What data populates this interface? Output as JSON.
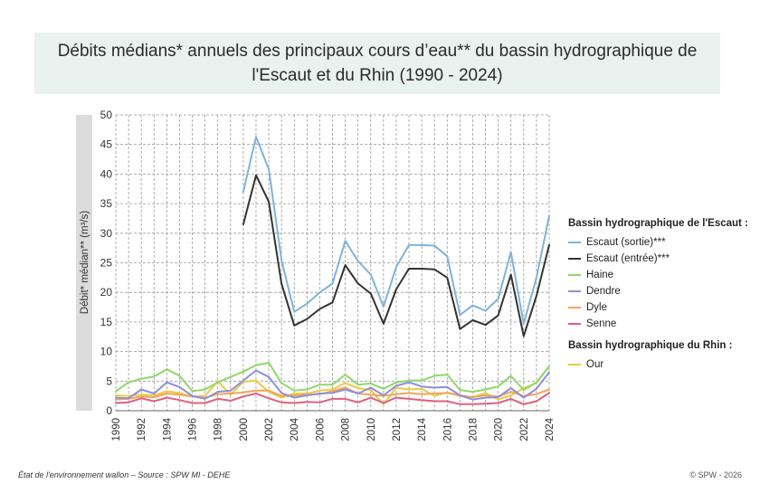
{
  "chart_data": {
    "type": "line",
    "title": "Débits médians* annuels des principaux cours d’eau** du bassin hydrographique de l'Escaut et du Rhin (1990 - 2024)",
    "ylabel": "Débit* médian** (m³/s)",
    "xlabel": "",
    "ylim": [
      0,
      50
    ],
    "yticks": [
      0,
      5,
      10,
      15,
      20,
      25,
      30,
      35,
      40,
      45,
      50
    ],
    "xlim": [
      1990,
      2024
    ],
    "xticks": [
      1990,
      1992,
      1994,
      1996,
      1998,
      2000,
      2002,
      2004,
      2006,
      2008,
      2010,
      2012,
      2014,
      2016,
      2018,
      2020,
      2022,
      2024
    ],
    "grid": true,
    "legend_position": "right",
    "x": [
      1990,
      1991,
      1992,
      1993,
      1994,
      1995,
      1996,
      1997,
      1998,
      1999,
      2000,
      2001,
      2002,
      2003,
      2004,
      2005,
      2006,
      2007,
      2008,
      2009,
      2010,
      2011,
      2012,
      2013,
      2014,
      2015,
      2016,
      2017,
      2018,
      2019,
      2020,
      2021,
      2022,
      2023,
      2024
    ],
    "series": [
      {
        "name": "Escaut (sortie)***",
        "color": "#7fb3dc",
        "values": [
          null,
          null,
          null,
          null,
          null,
          null,
          null,
          null,
          null,
          null,
          37,
          46.3,
          40.8,
          25.5,
          16.7,
          18.1,
          20,
          21.5,
          28.7,
          25.3,
          23,
          17.6,
          24.3,
          28,
          28,
          27.9,
          26.1,
          16.2,
          17.8,
          16.9,
          18.9,
          26.8,
          14.7,
          22.5,
          32.9
        ]
      },
      {
        "name": "Escaut (entrée)***",
        "color": "#333333",
        "values": [
          null,
          null,
          null,
          null,
          null,
          null,
          null,
          null,
          null,
          null,
          31.5,
          39.8,
          35.3,
          21.5,
          14.4,
          15.5,
          17.2,
          18.3,
          24.6,
          21.5,
          19.8,
          14.7,
          20.5,
          24,
          24,
          23.9,
          22.5,
          13.8,
          15.3,
          14.5,
          16.1,
          23,
          12.6,
          19.4,
          28
        ]
      },
      {
        "name": "Haine",
        "color": "#8fd86a",
        "values": [
          3.3,
          4.8,
          5.4,
          5.8,
          7,
          5.9,
          3.3,
          3.6,
          4.8,
          5.7,
          6.6,
          7.7,
          8.1,
          4.7,
          3.4,
          3.6,
          4.4,
          4.4,
          6.1,
          4.4,
          4.6,
          3.7,
          4.8,
          5.1,
          5.1,
          5.9,
          6.1,
          3.5,
          3.2,
          3.6,
          4.1,
          5.9,
          3.5,
          4.8,
          7.5
        ]
      },
      {
        "name": "Dendre",
        "color": "#8e8fdc",
        "values": [
          2.2,
          2.1,
          3.6,
          2.9,
          4.8,
          4,
          2.5,
          2,
          3.2,
          3.4,
          5.1,
          6.8,
          5.7,
          3,
          2.2,
          2.6,
          2.9,
          3,
          3.6,
          2.9,
          3.9,
          2.6,
          4.2,
          4.8,
          4.1,
          3.9,
          4,
          2.6,
          1.9,
          2.2,
          2.3,
          3.8,
          2.2,
          3.7,
          6.5
        ]
      },
      {
        "name": "Dyle",
        "color": "#f2a55a",
        "values": [
          1.9,
          2,
          2.4,
          2.3,
          2.9,
          2.7,
          2.4,
          2.2,
          2.8,
          2.9,
          3.1,
          3.4,
          3.4,
          2.5,
          2.6,
          2.7,
          2.8,
          3.3,
          3.9,
          2.9,
          2.7,
          2.5,
          2.8,
          3,
          2.8,
          2.9,
          3,
          2.6,
          2.3,
          2.6,
          2.4,
          3.2,
          2.5,
          2.8,
          3.6
        ]
      },
      {
        "name": "Senne",
        "color": "#e0607e",
        "values": [
          1.3,
          1.4,
          2.1,
          1.6,
          2.2,
          1.8,
          1.3,
          1.3,
          2,
          1.7,
          2.4,
          2.9,
          2.1,
          1.4,
          1.3,
          1.5,
          1.4,
          2,
          2,
          1.4,
          2.2,
          1.3,
          2.2,
          2,
          1.8,
          1.6,
          1.6,
          1.1,
          1.1,
          1.2,
          1.3,
          2,
          1.1,
          1.6,
          3
        ]
      },
      {
        "name": "Our",
        "color": "#e8cc47",
        "values": [
          2.6,
          2.5,
          2.7,
          2.6,
          3.3,
          3,
          2.4,
          2.5,
          5,
          2.7,
          4.9,
          5.1,
          3.2,
          2.2,
          2.9,
          2.9,
          3.4,
          3.6,
          4.7,
          3.8,
          3.5,
          1.1,
          3.9,
          3.6,
          3.7,
          2.5,
          3.1,
          2.5,
          2.3,
          3,
          1.9,
          2.6,
          3.8,
          4.7,
          7.5
        ]
      }
    ]
  },
  "legend": {
    "group1_title": "Bassin hydrographique de l'Escaut :",
    "group2_title": "Bassin hydrographique du Rhin :"
  },
  "footer": {
    "source": "État de l'environnement wallon – Source : SPW MI - DEHE",
    "copyright": "© SPW - 2026"
  }
}
